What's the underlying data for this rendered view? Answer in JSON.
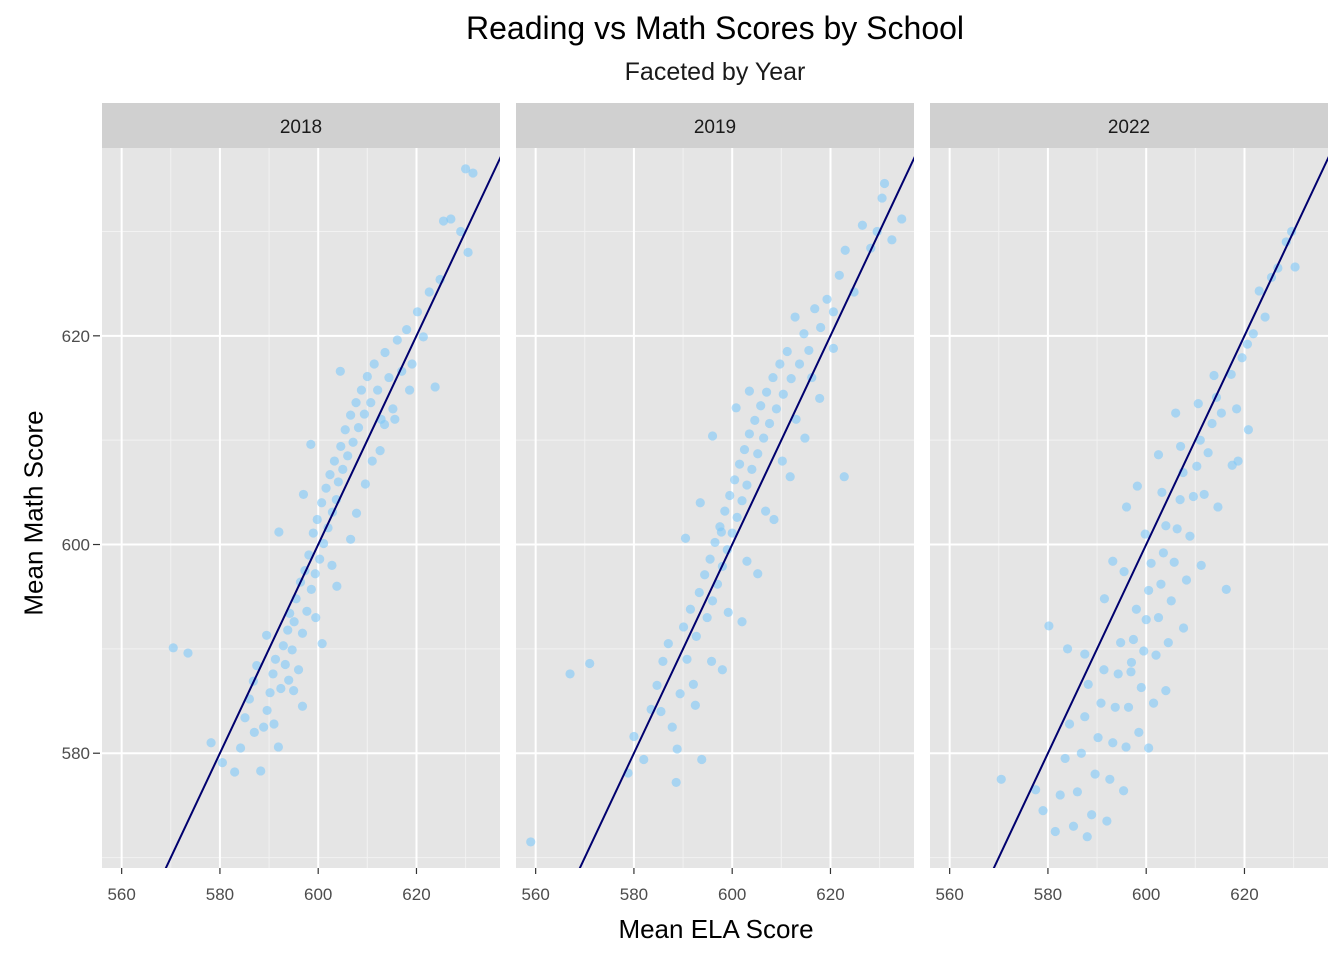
{
  "chart_data": {
    "type": "scatter",
    "title": "Reading vs Math Scores by School",
    "subtitle": "Faceted by Year",
    "xlabel": "Mean ELA Score",
    "ylabel": "Mean Math Score",
    "xlim": [
      556,
      637
    ],
    "ylim": [
      569,
      638
    ],
    "x_ticks": [
      560,
      580,
      600,
      620
    ],
    "y_ticks": [
      580,
      600,
      620
    ],
    "grid": true,
    "point_color": "#7FC8F8",
    "line_color": "#00006E",
    "panel_background": "#E5E5E5",
    "strip_background": "#D0D0D0",
    "reference_line": {
      "type": "y = x",
      "points": [
        [
          568,
          568
        ],
        [
          640,
          640
        ]
      ]
    },
    "facets": [
      {
        "strip_label": "2018",
        "points": [
          [
            570.5,
            590.1
          ],
          [
            573.5,
            589.6
          ],
          [
            578.2,
            581.0
          ],
          [
            580.5,
            579.1
          ],
          [
            583.0,
            578.2
          ],
          [
            584.2,
            580.5
          ],
          [
            585.1,
            583.4
          ],
          [
            586.0,
            585.2
          ],
          [
            586.8,
            586.9
          ],
          [
            587.5,
            588.4
          ],
          [
            588.3,
            578.3
          ],
          [
            588.9,
            582.5
          ],
          [
            589.6,
            584.1
          ],
          [
            590.2,
            585.8
          ],
          [
            590.8,
            587.6
          ],
          [
            591.3,
            589.0
          ],
          [
            591.9,
            580.6
          ],
          [
            592.4,
            586.2
          ],
          [
            592.9,
            590.3
          ],
          [
            593.3,
            588.5
          ],
          [
            593.8,
            591.8
          ],
          [
            594.2,
            593.4
          ],
          [
            594.7,
            589.9
          ],
          [
            595.1,
            592.6
          ],
          [
            595.5,
            594.8
          ],
          [
            596.0,
            588.0
          ],
          [
            596.4,
            596.4
          ],
          [
            596.8,
            591.5
          ],
          [
            597.3,
            597.5
          ],
          [
            597.7,
            593.6
          ],
          [
            598.1,
            599.0
          ],
          [
            598.6,
            595.7
          ],
          [
            599.0,
            601.1
          ],
          [
            599.4,
            597.2
          ],
          [
            599.8,
            602.4
          ],
          [
            600.3,
            598.6
          ],
          [
            600.7,
            604.0
          ],
          [
            601.1,
            600.1
          ],
          [
            601.6,
            605.4
          ],
          [
            602.0,
            601.6
          ],
          [
            602.4,
            606.7
          ],
          [
            602.9,
            603.1
          ],
          [
            603.3,
            608.0
          ],
          [
            603.7,
            604.3
          ],
          [
            604.1,
            606.0
          ],
          [
            604.6,
            609.4
          ],
          [
            605.0,
            607.2
          ],
          [
            605.5,
            611.0
          ],
          [
            606.0,
            608.5
          ],
          [
            606.6,
            612.4
          ],
          [
            607.1,
            609.8
          ],
          [
            607.7,
            613.6
          ],
          [
            608.2,
            611.2
          ],
          [
            608.8,
            614.8
          ],
          [
            609.4,
            612.5
          ],
          [
            610.0,
            616.1
          ],
          [
            610.7,
            613.6
          ],
          [
            611.4,
            617.3
          ],
          [
            612.1,
            614.8
          ],
          [
            612.8,
            612.0
          ],
          [
            613.6,
            618.4
          ],
          [
            614.4,
            616.0
          ],
          [
            615.2,
            613.0
          ],
          [
            616.1,
            619.6
          ],
          [
            617.0,
            616.6
          ],
          [
            618.0,
            620.6
          ],
          [
            619.1,
            617.3
          ],
          [
            620.2,
            622.3
          ],
          [
            621.4,
            619.9
          ],
          [
            622.6,
            624.2
          ],
          [
            623.8,
            615.1
          ],
          [
            624.8,
            625.4
          ],
          [
            625.5,
            631.0
          ],
          [
            627.0,
            631.2
          ],
          [
            629.0,
            630.0
          ],
          [
            630.0,
            636.0
          ],
          [
            631.5,
            635.6
          ],
          [
            630.5,
            628.0
          ],
          [
            597.0,
            604.8
          ],
          [
            592.0,
            601.2
          ],
          [
            598.5,
            609.6
          ],
          [
            604.5,
            616.6
          ],
          [
            594.0,
            587.0
          ],
          [
            589.5,
            591.3
          ],
          [
            596.8,
            584.5
          ],
          [
            600.8,
            590.5
          ],
          [
            603.8,
            596.0
          ],
          [
            606.6,
            600.5
          ],
          [
            609.6,
            605.8
          ],
          [
            612.6,
            609.0
          ],
          [
            615.6,
            612.0
          ],
          [
            618.6,
            614.8
          ],
          [
            587.0,
            582.0
          ],
          [
            591.0,
            582.8
          ],
          [
            595.0,
            586.0
          ],
          [
            599.5,
            593.0
          ],
          [
            602.8,
            598.0
          ],
          [
            607.8,
            603.0
          ],
          [
            611.0,
            608.0
          ],
          [
            613.5,
            611.5
          ]
        ]
      },
      {
        "strip_label": "2019",
        "points": [
          [
            559.0,
            571.5
          ],
          [
            567.0,
            587.6
          ],
          [
            571.0,
            588.6
          ],
          [
            578.8,
            578.1
          ],
          [
            580.0,
            581.6
          ],
          [
            582.0,
            579.4
          ],
          [
            583.5,
            584.2
          ],
          [
            584.7,
            586.5
          ],
          [
            585.9,
            588.8
          ],
          [
            587.0,
            590.5
          ],
          [
            587.8,
            582.5
          ],
          [
            588.6,
            577.2
          ],
          [
            589.4,
            585.7
          ],
          [
            590.1,
            592.1
          ],
          [
            590.8,
            589.0
          ],
          [
            591.5,
            593.8
          ],
          [
            592.1,
            586.6
          ],
          [
            592.7,
            591.2
          ],
          [
            593.3,
            595.4
          ],
          [
            593.8,
            579.4
          ],
          [
            594.4,
            597.1
          ],
          [
            594.9,
            593.0
          ],
          [
            595.5,
            598.6
          ],
          [
            596.0,
            594.6
          ],
          [
            596.5,
            600.2
          ],
          [
            597.0,
            596.2
          ],
          [
            597.5,
            601.7
          ],
          [
            598.0,
            597.9
          ],
          [
            598.5,
            603.2
          ],
          [
            599.0,
            599.5
          ],
          [
            599.5,
            604.7
          ],
          [
            600.0,
            601.1
          ],
          [
            600.5,
            606.2
          ],
          [
            601.0,
            602.6
          ],
          [
            601.5,
            607.7
          ],
          [
            602.0,
            604.2
          ],
          [
            602.5,
            609.1
          ],
          [
            603.0,
            605.7
          ],
          [
            603.5,
            610.6
          ],
          [
            604.0,
            607.2
          ],
          [
            604.6,
            611.9
          ],
          [
            605.2,
            608.7
          ],
          [
            605.8,
            613.3
          ],
          [
            606.4,
            610.2
          ],
          [
            607.0,
            614.6
          ],
          [
            607.6,
            611.6
          ],
          [
            608.3,
            616.0
          ],
          [
            609.0,
            613.0
          ],
          [
            609.7,
            617.3
          ],
          [
            610.4,
            614.4
          ],
          [
            611.2,
            618.5
          ],
          [
            612.0,
            615.9
          ],
          [
            612.8,
            621.8
          ],
          [
            613.7,
            617.3
          ],
          [
            614.6,
            620.2
          ],
          [
            615.6,
            618.6
          ],
          [
            616.8,
            622.6
          ],
          [
            618.0,
            620.8
          ],
          [
            619.3,
            623.5
          ],
          [
            620.6,
            622.3
          ],
          [
            621.8,
            625.8
          ],
          [
            623.0,
            628.2
          ],
          [
            622.8,
            606.5
          ],
          [
            624.8,
            624.2
          ],
          [
            626.5,
            630.6
          ],
          [
            628.2,
            628.4
          ],
          [
            629.5,
            630.0
          ],
          [
            630.5,
            633.2
          ],
          [
            631.0,
            634.6
          ],
          [
            632.5,
            629.2
          ],
          [
            634.5,
            631.2
          ],
          [
            596.0,
            610.4
          ],
          [
            593.5,
            604.0
          ],
          [
            600.8,
            613.1
          ],
          [
            603.5,
            614.7
          ],
          [
            590.5,
            600.6
          ],
          [
            598.0,
            588.0
          ],
          [
            602.0,
            592.6
          ],
          [
            605.2,
            597.2
          ],
          [
            608.5,
            602.4
          ],
          [
            611.8,
            606.5
          ],
          [
            614.8,
            610.2
          ],
          [
            617.8,
            614.0
          ],
          [
            620.6,
            618.8
          ],
          [
            585.5,
            584.0
          ],
          [
            588.8,
            580.4
          ],
          [
            592.5,
            584.6
          ],
          [
            595.8,
            588.8
          ],
          [
            599.2,
            593.5
          ],
          [
            603.0,
            598.4
          ],
          [
            606.8,
            603.2
          ],
          [
            610.2,
            608.0
          ],
          [
            613.0,
            612.0
          ],
          [
            616.2,
            616.0
          ],
          [
            597.8,
            601.2
          ]
        ]
      },
      {
        "strip_label": "2022",
        "points": [
          [
            570.5,
            577.5
          ],
          [
            577.5,
            576.5
          ],
          [
            579.0,
            574.5
          ],
          [
            580.2,
            592.2
          ],
          [
            581.5,
            572.5
          ],
          [
            582.5,
            576.0
          ],
          [
            583.5,
            579.5
          ],
          [
            584.4,
            582.8
          ],
          [
            585.2,
            573.0
          ],
          [
            586.0,
            576.3
          ],
          [
            586.8,
            580.0
          ],
          [
            587.5,
            583.5
          ],
          [
            588.2,
            586.6
          ],
          [
            588.9,
            574.1
          ],
          [
            589.6,
            578.0
          ],
          [
            590.2,
            581.5
          ],
          [
            590.8,
            584.8
          ],
          [
            591.4,
            588.0
          ],
          [
            592.0,
            573.5
          ],
          [
            592.6,
            577.5
          ],
          [
            593.2,
            581.0
          ],
          [
            593.7,
            584.4
          ],
          [
            594.3,
            587.6
          ],
          [
            594.8,
            590.6
          ],
          [
            595.4,
            576.4
          ],
          [
            595.9,
            580.6
          ],
          [
            596.4,
            584.4
          ],
          [
            596.9,
            587.8
          ],
          [
            597.4,
            590.9
          ],
          [
            598.0,
            593.8
          ],
          [
            598.5,
            582.0
          ],
          [
            599.0,
            586.3
          ],
          [
            599.5,
            589.8
          ],
          [
            600.0,
            592.8
          ],
          [
            600.5,
            595.6
          ],
          [
            601.0,
            598.2
          ],
          [
            601.5,
            584.8
          ],
          [
            602.0,
            589.4
          ],
          [
            602.5,
            593.0
          ],
          [
            603.0,
            596.2
          ],
          [
            603.5,
            599.2
          ],
          [
            604.0,
            601.8
          ],
          [
            604.5,
            590.6
          ],
          [
            605.1,
            594.6
          ],
          [
            605.7,
            598.3
          ],
          [
            606.3,
            601.5
          ],
          [
            606.9,
            604.3
          ],
          [
            607.5,
            606.9
          ],
          [
            608.2,
            596.6
          ],
          [
            608.9,
            600.8
          ],
          [
            609.6,
            604.6
          ],
          [
            610.3,
            607.5
          ],
          [
            611.0,
            610.0
          ],
          [
            611.8,
            604.8
          ],
          [
            612.6,
            608.8
          ],
          [
            613.4,
            611.6
          ],
          [
            614.3,
            614.1
          ],
          [
            615.3,
            612.6
          ],
          [
            616.3,
            595.7
          ],
          [
            617.3,
            616.3
          ],
          [
            618.4,
            613.0
          ],
          [
            618.7,
            608.0
          ],
          [
            619.5,
            617.9
          ],
          [
            620.6,
            619.2
          ],
          [
            621.8,
            620.2
          ],
          [
            623.0,
            624.3
          ],
          [
            624.2,
            621.8
          ],
          [
            625.5,
            625.6
          ],
          [
            626.8,
            626.5
          ],
          [
            628.5,
            629.0
          ],
          [
            629.6,
            630.0
          ],
          [
            630.3,
            626.6
          ],
          [
            598.2,
            605.6
          ],
          [
            596.0,
            603.6
          ],
          [
            602.5,
            608.6
          ],
          [
            606.0,
            612.6
          ],
          [
            593.2,
            598.4
          ],
          [
            600.5,
            580.5
          ],
          [
            604.0,
            586.0
          ],
          [
            607.6,
            592.0
          ],
          [
            611.2,
            598.0
          ],
          [
            614.6,
            603.6
          ],
          [
            617.5,
            607.6
          ],
          [
            620.8,
            611.0
          ],
          [
            588.0,
            572.0
          ],
          [
            584.0,
            590.0
          ],
          [
            587.5,
            589.5
          ],
          [
            591.5,
            594.8
          ],
          [
            595.5,
            597.4
          ],
          [
            599.8,
            601.0
          ],
          [
            603.2,
            605.0
          ],
          [
            607.0,
            609.4
          ],
          [
            610.6,
            613.5
          ],
          [
            613.8,
            616.2
          ],
          [
            597.0,
            588.7
          ]
        ]
      }
    ]
  }
}
